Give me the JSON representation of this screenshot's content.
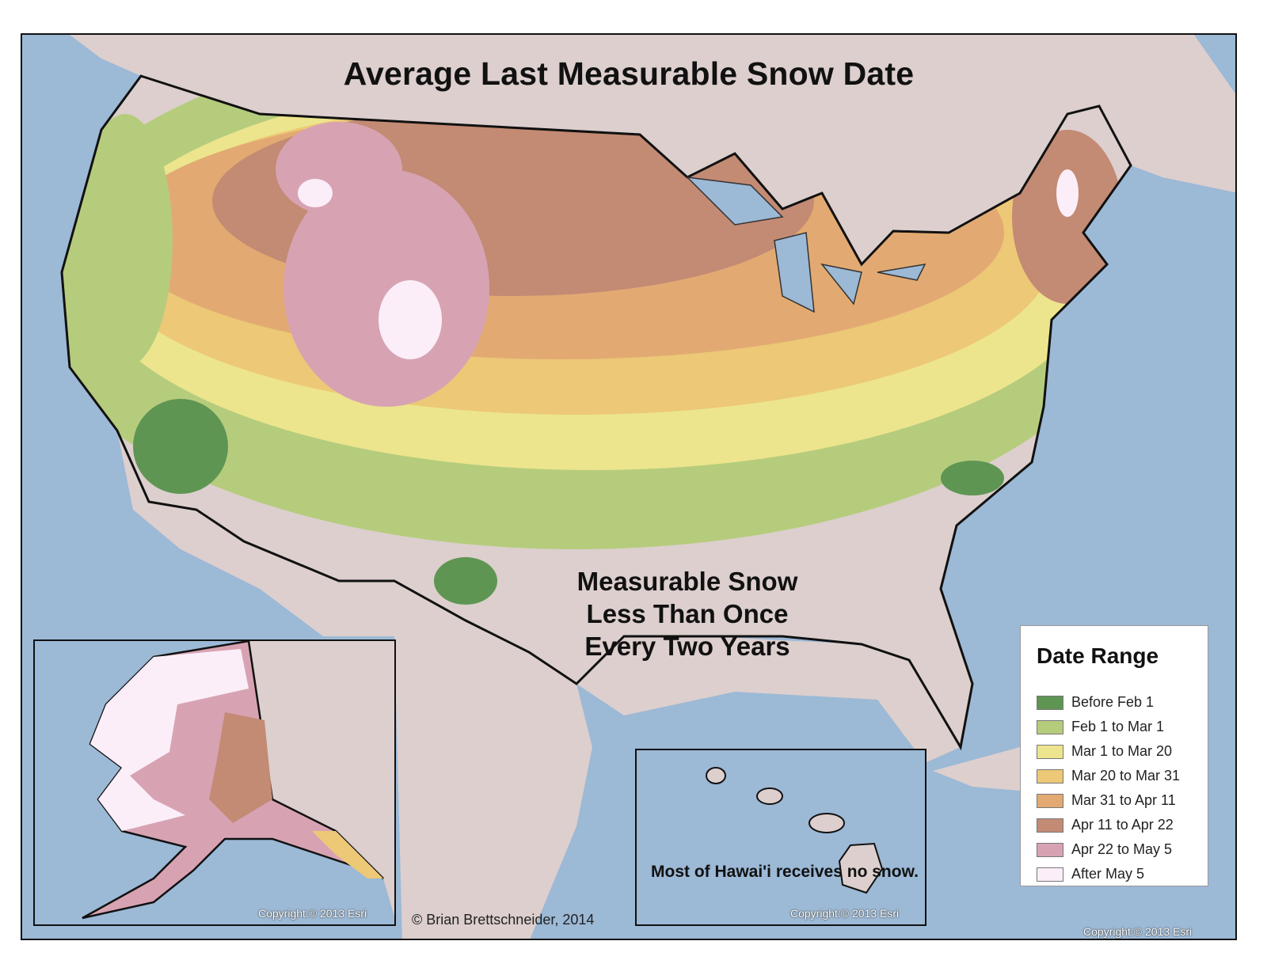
{
  "map": {
    "title": "Average Last Measurable Snow Date",
    "no_snow_note": "Measurable Snow Less Than Once Every Two Years",
    "credit": "© Brian Brettschneider, 2014",
    "copyright_main": "Copyright:© 2013 Esri",
    "colors": {
      "ocean": "#9cb9d6",
      "land_outside": "#dccfcd",
      "border": "#111111"
    }
  },
  "alaska_inset": {
    "copyright": "Copyright:© 2013 Esri"
  },
  "hawaii_inset": {
    "note": "Most of Hawai'i receives no snow.",
    "copyright": "Copyright:© 2013 Esri"
  },
  "legend": {
    "title": "Date Range",
    "items": [
      {
        "label": "Before Feb 1",
        "color": "#5f9553"
      },
      {
        "label": "Feb 1 to Mar 1",
        "color": "#b6cc7d"
      },
      {
        "label": "Mar 1 to Mar 20",
        "color": "#ece58d"
      },
      {
        "label": "Mar 20 to Mar 31",
        "color": "#ecc877"
      },
      {
        "label": "Mar 31 to Apr 11",
        "color": "#e2aa72"
      },
      {
        "label": "Apr 11 to Apr 22",
        "color": "#c38a74"
      },
      {
        "label": "Apr 22 to May 5",
        "color": "#d7a3b2"
      },
      {
        "label": "After May 5",
        "color": "#fbeef8"
      }
    ]
  }
}
